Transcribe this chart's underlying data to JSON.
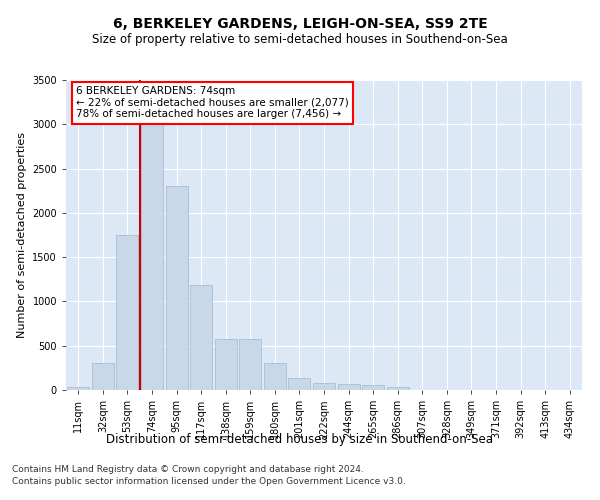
{
  "title": "6, BERKELEY GARDENS, LEIGH-ON-SEA, SS9 2TE",
  "subtitle": "Size of property relative to semi-detached houses in Southend-on-Sea",
  "xlabel": "Distribution of semi-detached houses by size in Southend-on-Sea",
  "ylabel": "Number of semi-detached properties",
  "annotation_line1": "6 BERKELEY GARDENS: 74sqm",
  "annotation_line2": "← 22% of semi-detached houses are smaller (2,077)",
  "annotation_line3": "78% of semi-detached houses are larger (7,456) →",
  "categories": [
    "11sqm",
    "32sqm",
    "53sqm",
    "74sqm",
    "95sqm",
    "117sqm",
    "138sqm",
    "159sqm",
    "180sqm",
    "201sqm",
    "222sqm",
    "244sqm",
    "265sqm",
    "286sqm",
    "307sqm",
    "328sqm",
    "349sqm",
    "371sqm",
    "392sqm",
    "413sqm",
    "434sqm"
  ],
  "bar_heights": [
    30,
    310,
    1750,
    3000,
    2300,
    1180,
    580,
    580,
    310,
    130,
    80,
    70,
    55,
    30,
    0,
    0,
    0,
    0,
    0,
    0,
    0
  ],
  "bar_color": "#c8d8e8",
  "bar_edge_color": "#a0b8d0",
  "vline_color": "#cc0000",
  "vline_bar_index": 3,
  "ylim": [
    0,
    3500
  ],
  "yticks": [
    0,
    500,
    1000,
    1500,
    2000,
    2500,
    3000,
    3500
  ],
  "bg_color": "#dce8f5",
  "footer1": "Contains HM Land Registry data © Crown copyright and database right 2024.",
  "footer2": "Contains public sector information licensed under the Open Government Licence v3.0.",
  "title_fontsize": 10,
  "subtitle_fontsize": 8.5,
  "xlabel_fontsize": 8.5,
  "ylabel_fontsize": 8,
  "tick_fontsize": 7,
  "annotation_fontsize": 7.5,
  "footer_fontsize": 6.5
}
